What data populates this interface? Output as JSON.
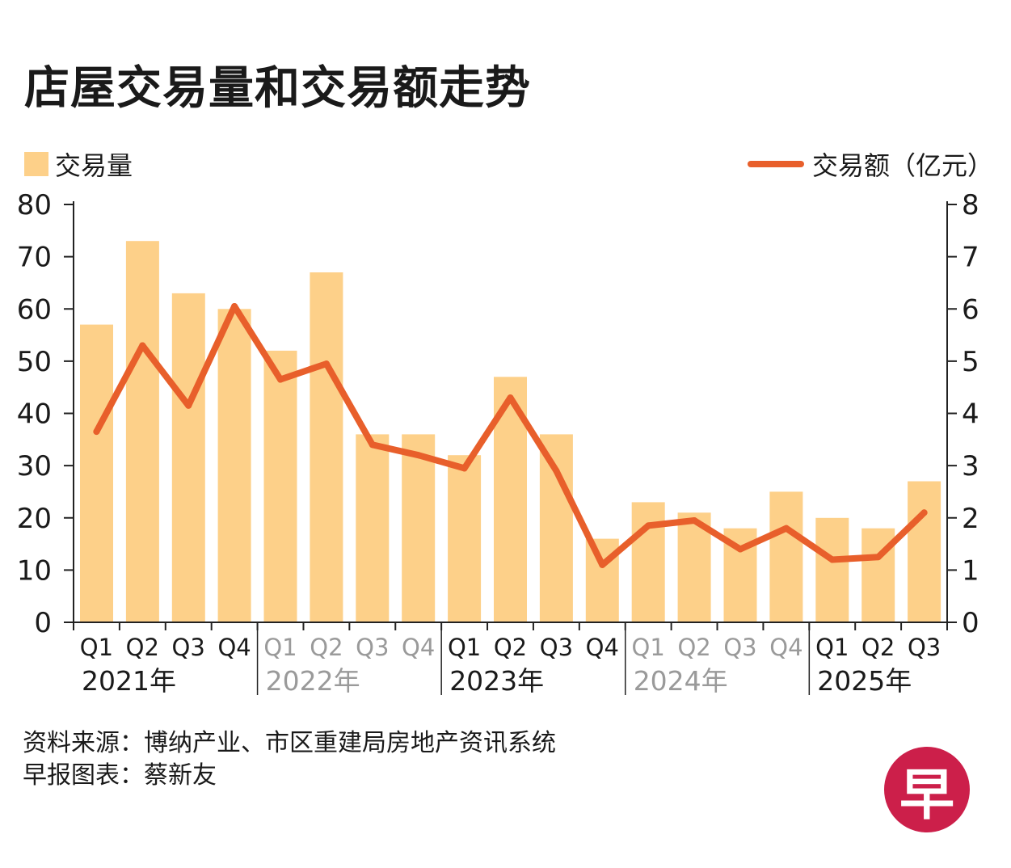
{
  "title": "店屋交易量和交易额走势",
  "colors": {
    "bar": "#fdd089",
    "line": "#e85f2b",
    "axis": "#222222",
    "text_dark": "#1a1a1a",
    "text_gray": "#9a9a9a",
    "logo": "#cc1f4a"
  },
  "source": {
    "line1": "资料来源：博纳产业、市区重建局房地产资讯系统",
    "line2": "早报图表：蔡新友"
  },
  "logo": {
    "text": "早"
  },
  "chart_data": {
    "type": "bar",
    "title": "店屋交易量和交易额走势",
    "categories": [
      "Q1",
      "Q2",
      "Q3",
      "Q4",
      "Q1",
      "Q2",
      "Q3",
      "Q4",
      "Q1",
      "Q2",
      "Q3",
      "Q4",
      "Q1",
      "Q2",
      "Q3",
      "Q4",
      "Q1",
      "Q2",
      "Q3"
    ],
    "years": [
      {
        "label": "2021年",
        "start": 0,
        "count": 4,
        "highlight": true
      },
      {
        "label": "2022年",
        "start": 4,
        "count": 4,
        "highlight": false
      },
      {
        "label": "2023年",
        "start": 8,
        "count": 4,
        "highlight": true
      },
      {
        "label": "2024年",
        "start": 12,
        "count": 4,
        "highlight": false
      },
      {
        "label": "2025年",
        "start": 16,
        "count": 3,
        "highlight": true
      }
    ],
    "series": [
      {
        "name": "交易量",
        "type": "bar",
        "axis": "left",
        "values": [
          57,
          73,
          63,
          60,
          52,
          67,
          36,
          36,
          32,
          47,
          36,
          16,
          23,
          21,
          18,
          25,
          20,
          18,
          27
        ]
      },
      {
        "name": "交易额（亿元）",
        "type": "line",
        "axis": "right",
        "values": [
          3.65,
          5.3,
          4.15,
          6.05,
          4.65,
          4.95,
          3.4,
          3.2,
          2.95,
          4.3,
          2.9,
          1.1,
          1.85,
          1.95,
          1.4,
          1.8,
          1.2,
          1.25,
          2.1
        ]
      }
    ],
    "y_left": {
      "min": 0,
      "max": 80,
      "ticks": [
        0,
        10,
        20,
        30,
        40,
        50,
        60,
        70,
        80
      ]
    },
    "y_right": {
      "min": 0,
      "max": 8,
      "ticks": [
        0,
        1,
        2,
        3,
        4,
        5,
        6,
        7,
        8
      ]
    },
    "grid": false,
    "legend": "top"
  }
}
